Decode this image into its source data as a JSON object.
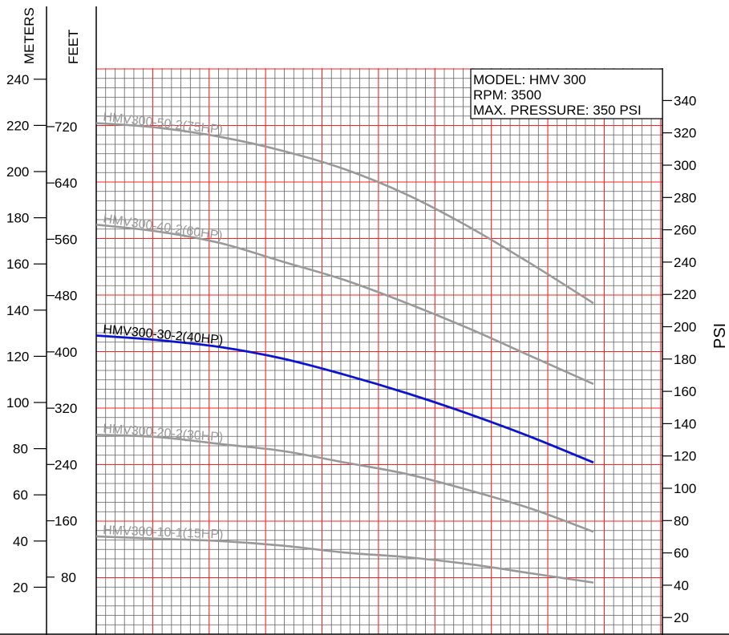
{
  "chart_data": {
    "type": "line",
    "title": "",
    "info_box": [
      "MODEL: HMV 300",
      "RPM: 3500",
      "MAX. PRESSURE: 350 PSI"
    ],
    "axes": {
      "meters": {
        "label": "METERS",
        "ticks": [
          20,
          40,
          60,
          80,
          100,
          120,
          140,
          160,
          180,
          200,
          220,
          240
        ],
        "range": [
          0,
          245
        ]
      },
      "feet": {
        "label": "FEET",
        "ticks": [
          80,
          160,
          240,
          320,
          400,
          480,
          560,
          640,
          720
        ]
      },
      "psi": {
        "label": "PSI",
        "ticks": [
          20,
          40,
          60,
          80,
          100,
          120,
          140,
          160,
          180,
          200,
          220,
          240,
          260,
          280,
          300,
          320,
          340
        ]
      },
      "x": {
        "label": "",
        "ticks": []
      }
    },
    "grid": true,
    "colors": {
      "highlight": "#0a14d2",
      "curve": "#999999",
      "major_grid": "#ff2020",
      "minor_grid": "#606060",
      "axis": "#000000"
    },
    "series": [
      {
        "name": "HMV300-50-2(75HP)",
        "highlight": false,
        "meters": [
          221,
          219,
          215,
          209,
          201,
          190,
          176,
          160,
          143
        ]
      },
      {
        "name": "HMV300-40-2(60HP)",
        "highlight": false,
        "meters": [
          177,
          174,
          169,
          161,
          153,
          143,
          132,
          120,
          108
        ]
      },
      {
        "name": "HMV300-30-2(40HP)",
        "highlight": true,
        "meters": [
          129,
          127,
          124,
          119,
          112,
          104,
          95,
          85,
          74
        ]
      },
      {
        "name": "HMV300-20-2(30HP)",
        "highlight": false,
        "meters": [
          86,
          85,
          82,
          79,
          74,
          69,
          62,
          54,
          44
        ]
      },
      {
        "name": "HMV300-10-1(15HP)",
        "highlight": false,
        "meters": [
          42,
          41,
          40,
          38,
          35,
          33,
          30,
          26,
          22
        ]
      }
    ]
  }
}
